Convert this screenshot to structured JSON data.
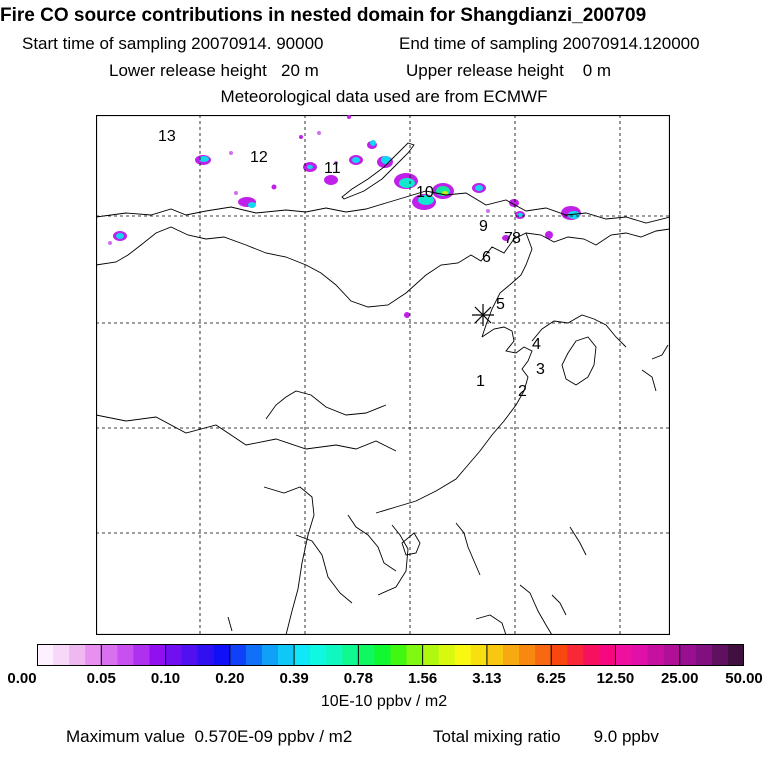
{
  "header": {
    "title": "Fire CO source contributions in nested domain for Shangdianzi_200709",
    "start_label": "Start time of sampling 20070914. 90000",
    "end_label": "End time of sampling 20070914.120000",
    "lower_label": "Lower release height   20 m",
    "upper_label": "Upper release height    0 m",
    "met_label": "Meteorological data used are from ECMWF"
  },
  "map": {
    "labels": [
      "1",
      "2",
      "3",
      "4",
      "5",
      "6",
      "7",
      "8",
      "9",
      "10",
      "11",
      "12",
      "13"
    ]
  },
  "colorbar": {
    "ticks": [
      "0.00",
      "0.05",
      "0.10",
      "0.20",
      "0.39",
      "0.78",
      "1.56",
      "3.13",
      "6.25",
      "12.50",
      "25.00",
      "50.00"
    ],
    "unit": "10E-10 ppbv / m2",
    "colors": [
      "#fff0ff",
      "#f8d8f8",
      "#f0b8f0",
      "#e890f0",
      "#d870f0",
      "#c850f0",
      "#b030f0",
      "#9010f0",
      "#7010f0",
      "#5010f0",
      "#3010f0",
      "#1010f8",
      "#1040f8",
      "#1070f8",
      "#10a0f8",
      "#10c8f8",
      "#10e8f8",
      "#10f8e0",
      "#10f8c0",
      "#10f890",
      "#10f860",
      "#10f830",
      "#40f810",
      "#80f810",
      "#b0f810",
      "#d8f810",
      "#f8f810",
      "#f8e010",
      "#f8c810",
      "#f8a810",
      "#f88810",
      "#f86810",
      "#f84810",
      "#f82838",
      "#f81060",
      "#f80880",
      "#f010a0",
      "#e010a8",
      "#c810a0",
      "#b01098",
      "#981090",
      "#801080",
      "#601060",
      "#401040"
    ]
  },
  "footer": {
    "max_label": "Maximum value  0.570E-09 ppbv / m2",
    "total_label": "Total mixing ratio       9.0 ppbv"
  }
}
